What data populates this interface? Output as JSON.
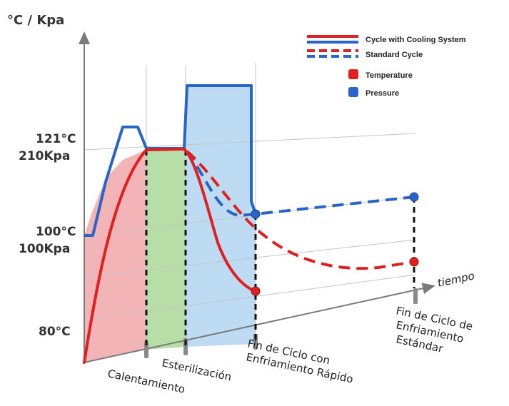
{
  "colors": {
    "temperature": "#e02020",
    "pressure": "#2a64c8",
    "heating_fill": "#f3b4b8",
    "sterilization_fill": "#b7dea6",
    "cooling_fill": "#bddbf2",
    "axis": "#7a7a7a",
    "grid": "#bdbdbd"
  },
  "chart_data": {
    "type": "line",
    "ylabel": "°C / Kpa",
    "xlabel": "tiempo",
    "y_ticks": [
      {
        "line1": "121°C",
        "line2": "210Kpa",
        "value": 121
      },
      {
        "line1": "100°C",
        "line2": "100Kpa",
        "value": 100
      },
      {
        "line1": "80°C",
        "line2": "",
        "value": 80
      }
    ],
    "phases": [
      {
        "label": "Calentamiento"
      },
      {
        "label": "Esterilización"
      },
      {
        "line1": "Fin de Ciclo con",
        "line2": "Enfriamiento Rápido"
      },
      {
        "line1": "Fin de Ciclo de",
        "line2": "Enfriamiento",
        "line3": "Estándar"
      }
    ],
    "legend": {
      "cooling": "Cycle with Cooling System",
      "standard": "Standard Cycle",
      "temperature": "Temperature",
      "pressure": "Pressure"
    },
    "series": [
      {
        "name": "Temperature",
        "cycle": "Cycle with Cooling System",
        "style": "solid",
        "points": [
          [
            0,
            72
          ],
          [
            1,
            121
          ],
          [
            2,
            121
          ],
          [
            3,
            90
          ]
        ]
      },
      {
        "name": "Pressure",
        "cycle": "Cycle with Cooling System",
        "style": "solid",
        "points": [
          [
            0,
            100
          ],
          [
            1,
            210
          ],
          [
            2,
            210
          ],
          [
            3,
            100
          ]
        ]
      },
      {
        "name": "Temperature",
        "cycle": "Standard Cycle",
        "style": "dashed",
        "points": [
          [
            2,
            121
          ],
          [
            3,
            100
          ],
          [
            4,
            96
          ]
        ]
      },
      {
        "name": "Pressure",
        "cycle": "Standard Cycle",
        "style": "dashed",
        "points": [
          [
            2,
            210
          ],
          [
            3,
            100
          ],
          [
            4,
            100
          ]
        ]
      }
    ]
  }
}
